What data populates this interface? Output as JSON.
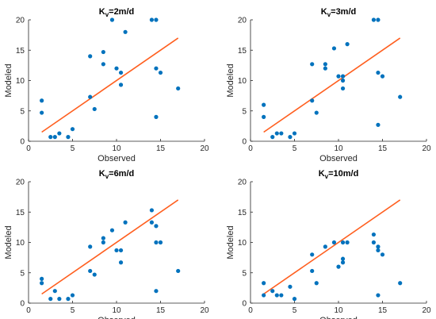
{
  "colors": {
    "points": "#0072BD",
    "fit_line": "#FF5F1F",
    "axes": "#262626"
  },
  "chart_data": [
    {
      "type": "scatter",
      "title": {
        "base": "K",
        "sub": "v",
        "rest": "=2m/d"
      },
      "xlabel": "Observed",
      "ylabel": "Modeled",
      "xlim": [
        0,
        20
      ],
      "ylim": [
        0,
        20
      ],
      "xticks": [
        "0",
        "5",
        "10",
        "15",
        "20"
      ],
      "yticks": [
        "0",
        "5",
        "10",
        "15",
        "20"
      ],
      "grid": false,
      "fit_line": {
        "x": [
          1.5,
          17
        ],
        "y": [
          1.5,
          17
        ]
      },
      "points": {
        "x": [
          1.5,
          1.5,
          2.5,
          3.0,
          3.5,
          4.5,
          5.0,
          7.0,
          7.0,
          7.5,
          8.5,
          8.5,
          9.5,
          10.0,
          10.5,
          10.5,
          11.0,
          14.0,
          14.5,
          14.5,
          14.5,
          15.0,
          17.0
        ],
        "y": [
          6.7,
          4.7,
          0.7,
          0.7,
          1.3,
          0.7,
          2.0,
          14.0,
          7.3,
          5.3,
          14.7,
          12.7,
          20.0,
          12.0,
          11.3,
          9.3,
          18.0,
          20.0,
          20.0,
          12.0,
          4.0,
          11.3,
          8.7
        ]
      }
    },
    {
      "type": "scatter",
      "title": {
        "base": "K",
        "sub": "v",
        "rest": "=3m/d"
      },
      "xlabel": "Observed",
      "ylabel": "Modeled",
      "xlim": [
        0,
        20
      ],
      "ylim": [
        0,
        20
      ],
      "xticks": [
        "0",
        "5",
        "10",
        "15",
        "20"
      ],
      "yticks": [
        "0",
        "5",
        "10",
        "15",
        "20"
      ],
      "grid": false,
      "fit_line": {
        "x": [
          1.5,
          17
        ],
        "y": [
          1.5,
          17
        ]
      },
      "points": {
        "x": [
          1.5,
          1.5,
          2.5,
          3.0,
          3.5,
          4.5,
          5.0,
          7.0,
          7.0,
          7.5,
          8.5,
          8.5,
          9.5,
          10.0,
          10.5,
          10.5,
          10.5,
          11.0,
          14.0,
          14.5,
          14.5,
          14.5,
          15.0,
          17.0
        ],
        "y": [
          6.0,
          4.0,
          0.7,
          1.3,
          1.3,
          0.7,
          1.3,
          12.7,
          6.7,
          4.7,
          12.7,
          12.0,
          15.3,
          10.7,
          10.7,
          10.0,
          8.7,
          16.0,
          20.0,
          20.0,
          11.3,
          2.7,
          10.7,
          7.3
        ]
      }
    },
    {
      "type": "scatter",
      "title": {
        "base": "K",
        "sub": "v",
        "rest": "=6m/d"
      },
      "xlabel": "Observed",
      "ylabel": "Modeled",
      "xlim": [
        0,
        20
      ],
      "ylim": [
        0,
        20
      ],
      "xticks": [
        "0",
        "5",
        "10",
        "15",
        "20"
      ],
      "yticks": [
        "0",
        "5",
        "10",
        "15",
        "20"
      ],
      "grid": false,
      "fit_line": {
        "x": [
          1.5,
          17
        ],
        "y": [
          1.5,
          17
        ]
      },
      "points": {
        "x": [
          1.5,
          1.5,
          2.5,
          3.0,
          3.5,
          4.5,
          5.0,
          7.0,
          7.0,
          7.5,
          8.5,
          8.5,
          9.5,
          10.0,
          10.5,
          10.5,
          11.0,
          14.0,
          14.0,
          14.5,
          14.5,
          14.5,
          15.0,
          17.0
        ],
        "y": [
          4.0,
          3.3,
          0.7,
          2.0,
          0.7,
          0.7,
          1.3,
          9.3,
          5.3,
          4.7,
          10.7,
          10.0,
          12.0,
          8.7,
          8.7,
          6.7,
          13.3,
          15.3,
          13.3,
          12.7,
          10.0,
          2.0,
          10.0,
          5.3
        ]
      }
    },
    {
      "type": "scatter",
      "title": {
        "base": "K",
        "sub": "v",
        "rest": "=10m/d"
      },
      "xlabel": "Observed",
      "ylabel": "Modeled",
      "xlim": [
        0,
        20
      ],
      "ylim": [
        0,
        20
      ],
      "xticks": [
        "0",
        "5",
        "10",
        "15",
        "20"
      ],
      "yticks": [
        "0",
        "5",
        "10",
        "15",
        "20"
      ],
      "grid": false,
      "fit_line": {
        "x": [
          1.5,
          17
        ],
        "y": [
          1.5,
          17
        ]
      },
      "points": {
        "x": [
          1.5,
          1.5,
          2.5,
          3.0,
          3.5,
          4.5,
          5.0,
          7.0,
          7.0,
          7.5,
          8.5,
          9.5,
          10.0,
          10.5,
          10.5,
          10.5,
          11.0,
          14.0,
          14.0,
          14.5,
          14.5,
          14.5,
          15.0,
          17.0
        ],
        "y": [
          3.3,
          1.3,
          2.0,
          1.3,
          1.3,
          2.7,
          0.7,
          8.0,
          5.3,
          3.3,
          9.3,
          10.0,
          6.0,
          7.3,
          6.7,
          10.0,
          10.0,
          11.3,
          10.0,
          9.3,
          8.7,
          1.3,
          8.0,
          3.3
        ]
      }
    }
  ]
}
